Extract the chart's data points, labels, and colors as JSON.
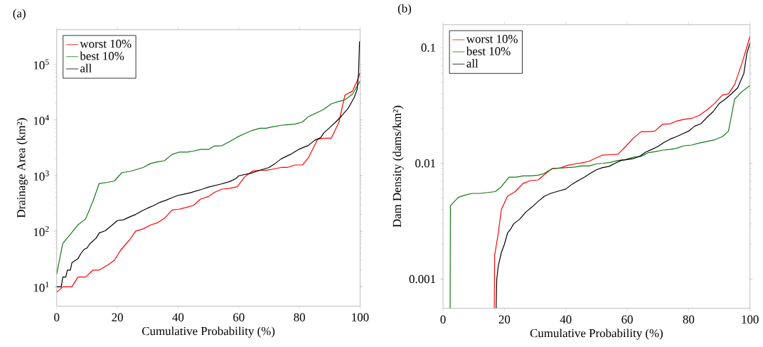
{
  "chart_data": [
    {
      "type": "line",
      "title": "(a)",
      "xlabel": "Cumulative Probability (%)",
      "ylabel": "Drainage Area (km²)",
      "log": "y",
      "legend": "top left",
      "grid": false,
      "xlim": [
        0,
        100
      ],
      "ylim": [
        4.5,
        420000
      ],
      "xticks": [
        0,
        20,
        40,
        60,
        80,
        100
      ],
      "yticks": [
        {
          "value": 10,
          "label": "10$^{1}$"
        },
        {
          "value": 100,
          "label": "10$^{2}$"
        },
        {
          "value": 1000,
          "label": "10$^{3}$"
        },
        {
          "value": 10000,
          "label": "10$^{4}$"
        },
        {
          "value": 100000,
          "label": "10$^{5}$"
        }
      ],
      "series": [
        {
          "name": "worst 10%",
          "color": "#ff0000",
          "x": [
            0,
            2,
            5,
            7,
            9.5,
            12,
            14,
            17,
            19,
            21,
            24,
            26,
            28.5,
            31,
            33,
            35.5,
            38,
            40.5,
            43,
            45,
            47.5,
            50,
            52,
            54.5,
            57,
            59.5,
            62,
            64.5,
            67,
            69,
            71,
            74,
            76,
            78.5,
            81,
            83,
            86,
            88,
            90.5,
            93,
            95,
            97.5,
            99,
            100
          ],
          "values": [
            8,
            10,
            10,
            15,
            15,
            20,
            20,
            25,
            30,
            45,
            70,
            100,
            110,
            130,
            140,
            170,
            240,
            250,
            270,
            290,
            380,
            420,
            500,
            570,
            590,
            630,
            950,
            1200,
            1250,
            1250,
            1300,
            1400,
            1400,
            1550,
            1550,
            2100,
            4500,
            4700,
            4700,
            9000,
            28000,
            33000,
            50000,
            70000
          ]
        },
        {
          "name": "best 10%",
          "color": "#127812",
          "x": [
            0,
            2,
            5,
            7,
            9.5,
            12,
            14,
            17,
            19,
            21.5,
            24,
            26,
            28.5,
            31,
            33,
            35.5,
            38,
            40.5,
            43,
            45,
            47.5,
            50,
            52,
            54.5,
            57,
            59.5,
            62,
            64.5,
            67,
            69,
            71,
            74,
            76,
            78.5,
            81,
            83,
            86,
            88,
            90.5,
            93,
            95,
            97.5,
            100
          ],
          "values": [
            17,
            60,
            95,
            130,
            165,
            350,
            720,
            760,
            800,
            1130,
            1180,
            1270,
            1400,
            1650,
            1750,
            1850,
            2400,
            2650,
            2650,
            2750,
            2950,
            2950,
            3400,
            3450,
            4100,
            4900,
            5700,
            6500,
            7100,
            7100,
            7500,
            8000,
            8200,
            8400,
            9200,
            11500,
            13700,
            15500,
            19500,
            21500,
            23000,
            29000,
            50000
          ]
        },
        {
          "name": "all",
          "color": "#000000",
          "x": [
            0,
            1.5,
            2,
            3,
            3.5,
            4.5,
            5,
            7,
            8,
            9,
            10,
            11,
            13,
            14,
            16,
            18,
            20,
            22,
            24,
            26,
            28,
            30,
            32,
            34,
            36,
            38,
            40,
            44,
            48,
            50,
            54,
            57,
            59,
            60,
            64,
            66,
            70,
            72,
            74,
            77,
            80,
            83,
            85,
            87,
            88,
            90,
            92,
            94,
            96,
            98,
            99,
            99.5,
            99.8,
            100
          ],
          "values": [
            10,
            10,
            15,
            15,
            20,
            20,
            27,
            32,
            40,
            47,
            50,
            60,
            75,
            93,
            102,
            125,
            155,
            160,
            180,
            200,
            230,
            260,
            290,
            330,
            360,
            400,
            440,
            490,
            570,
            620,
            700,
            780,
            880,
            990,
            1100,
            1200,
            1400,
            1650,
            2000,
            2400,
            3000,
            3500,
            4300,
            4800,
            5800,
            7300,
            9200,
            12000,
            16000,
            25000,
            35000,
            70000,
            250000,
            260000
          ]
        }
      ]
    },
    {
      "type": "line",
      "title": "(b)",
      "xlabel": "Cumulative Probability (%)",
      "ylabel": "Dam Density (dams/km²)",
      "log": "y",
      "legend": "top left",
      "grid": false,
      "xlim": [
        0,
        100
      ],
      "ylim": [
        0.00056,
        0.158
      ],
      "xticks": [
        0,
        20,
        40,
        60,
        80,
        100
      ],
      "yticks": [
        0.001,
        0.01,
        0.1
      ],
      "series": [
        {
          "name": "worst 10%",
          "color": "#ff0000",
          "x": [
            16.7,
            16.8,
            18,
            19,
            21,
            23.5,
            26,
            28.5,
            31,
            33,
            35.5,
            38,
            40.5,
            43,
            45,
            47.5,
            50,
            52,
            54.5,
            57,
            59.5,
            62,
            64.5,
            67,
            69,
            71.5,
            74,
            76,
            78.5,
            81,
            83.5,
            86,
            88.5,
            91,
            93,
            95,
            97.5,
            100
          ],
          "values": [
            0.00056,
            0.0016,
            0.0025,
            0.004,
            0.0052,
            0.0057,
            0.0067,
            0.0071,
            0.0072,
            0.008,
            0.009,
            0.0091,
            0.0096,
            0.0099,
            0.0101,
            0.0104,
            0.0112,
            0.0118,
            0.0119,
            0.012,
            0.014,
            0.0165,
            0.0188,
            0.0188,
            0.019,
            0.0218,
            0.022,
            0.0232,
            0.024,
            0.0245,
            0.026,
            0.029,
            0.033,
            0.039,
            0.04,
            0.048,
            0.075,
            0.125
          ]
        },
        {
          "name": "best 10%",
          "color": "#127812",
          "x": [
            2.3,
            2.4,
            5,
            7,
            9.5,
            12,
            14.5,
            17,
            19,
            21.5,
            24,
            26,
            28.5,
            31,
            33,
            35.5,
            38,
            40.5,
            43,
            45,
            47.5,
            50,
            52,
            54.5,
            57,
            59.5,
            62,
            64.5,
            67,
            69,
            71.5,
            74,
            76,
            78.5,
            81,
            83.5,
            86,
            88.5,
            91,
            93,
            95,
            97.5,
            100
          ],
          "values": [
            0.00056,
            0.0043,
            0.0051,
            0.0053,
            0.0055,
            0.0055,
            0.0056,
            0.0057,
            0.0063,
            0.0076,
            0.0076,
            0.0078,
            0.0078,
            0.0079,
            0.0082,
            0.009,
            0.0091,
            0.0092,
            0.0093,
            0.0095,
            0.0095,
            0.0099,
            0.01,
            0.0102,
            0.0106,
            0.0108,
            0.0113,
            0.0115,
            0.0124,
            0.0126,
            0.013,
            0.0132,
            0.0135,
            0.0142,
            0.0144,
            0.015,
            0.0155,
            0.016,
            0.017,
            0.019,
            0.036,
            0.042,
            0.047
          ]
        },
        {
          "name": "all",
          "color": "#000000",
          "x": [
            17.3,
            17.5,
            18,
            19,
            20,
            21,
            22,
            23,
            25,
            27,
            29,
            31,
            33,
            35,
            38,
            40,
            42,
            44,
            46,
            48,
            50,
            52,
            54,
            56,
            58,
            60,
            62,
            64,
            66,
            68,
            70,
            72,
            74,
            76,
            78,
            80,
            82,
            84,
            86,
            88,
            90,
            92,
            94,
            96,
            97,
            98,
            99,
            100
          ],
          "values": [
            0.00056,
            0.001,
            0.0013,
            0.0017,
            0.002,
            0.0025,
            0.0027,
            0.003,
            0.0033,
            0.0038,
            0.0042,
            0.0047,
            0.0052,
            0.0055,
            0.0058,
            0.006,
            0.0066,
            0.0071,
            0.0076,
            0.0082,
            0.0088,
            0.0092,
            0.0094,
            0.01,
            0.0106,
            0.0108,
            0.011,
            0.0115,
            0.0125,
            0.0132,
            0.014,
            0.0152,
            0.0162,
            0.017,
            0.018,
            0.019,
            0.021,
            0.022,
            0.025,
            0.028,
            0.033,
            0.036,
            0.04,
            0.045,
            0.052,
            0.06,
            0.09,
            0.11
          ]
        }
      ]
    }
  ]
}
